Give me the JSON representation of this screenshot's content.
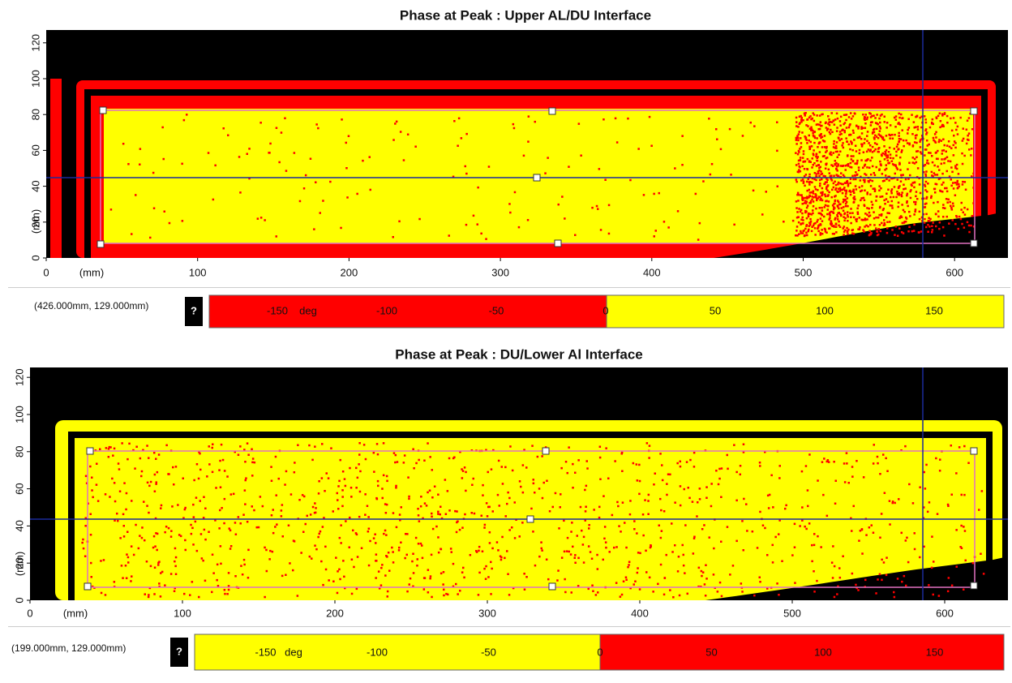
{
  "panels": [
    {
      "title": "Phase at Peak : Upper AL/DU Interface",
      "x_ticks": [
        0,
        100,
        200,
        300,
        400,
        500,
        600
      ],
      "x_unit": "(mm)",
      "y_ticks": [
        0,
        20,
        40,
        60,
        80,
        100,
        120
      ],
      "y_unit": "(mm)",
      "cursor": "(426.000mm, 129.000mm)",
      "help": "?",
      "colorbar": {
        "ticks": [
          -150,
          -100,
          -50,
          0,
          50,
          100,
          150
        ],
        "unit": "deg"
      }
    },
    {
      "title": "Phase at Peak : DU/Lower Al Interface",
      "x_ticks": [
        0,
        100,
        200,
        300,
        400,
        500,
        600
      ],
      "x_unit": "(mm)",
      "y_ticks": [
        0,
        20,
        40,
        60,
        80,
        100,
        120
      ],
      "y_unit": "(mm)",
      "cursor": "(199.000mm, 129.000mm)",
      "help": "?",
      "colorbar": {
        "ticks": [
          -150,
          -100,
          -50,
          0,
          50,
          100,
          150
        ],
        "unit": "deg"
      }
    }
  ]
}
